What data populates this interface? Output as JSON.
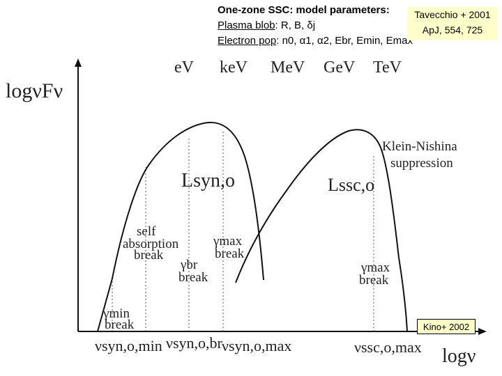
{
  "header": {
    "title": "One-zone SSC: model parameters:",
    "blob_label": "Plasma blob",
    "blob_params": ": R, B, δj",
    "pop_label": "Electron pop",
    "pop_params": ": n0, α1, α2, Ebr, Emin, Emax"
  },
  "reference": {
    "line1": "Tavecchio + 2001",
    "line2": "ApJ, 554, 725"
  },
  "credit": "Kino+ 2002",
  "axes": {
    "y_label": "logνFν",
    "x_label": "logν",
    "energy_ticks": [
      "eV",
      "keV",
      "MeV",
      "GeV",
      "TeV"
    ]
  },
  "labels": {
    "lsyn": "Lsyn,o",
    "lssc": "Lssc,o",
    "klein_nishina_1": "Klein-Nishina",
    "klein_nishina_2": "suppression",
    "self_abs_1": "self",
    "self_abs_2": "absorption",
    "self_abs_3": "break",
    "gamma_min": "γmin",
    "gamma_min_break": "break",
    "gamma_br": "γbr",
    "gamma_br_break": "break",
    "gamma_max_syn": "γmax",
    "gamma_max_syn_break": "break",
    "gamma_max_ssc": "γmax",
    "gamma_max_ssc_break": "break",
    "nu_syn_min": "νsyn,o,min",
    "nu_syn_br": "νsyn,o,br",
    "nu_syn_max": "νsyn,o,max",
    "nu_ssc_max": "νssc,o,max"
  },
  "colors": {
    "curve": "#111111",
    "guide": "#555555",
    "note_bg": "#ffffcc"
  }
}
